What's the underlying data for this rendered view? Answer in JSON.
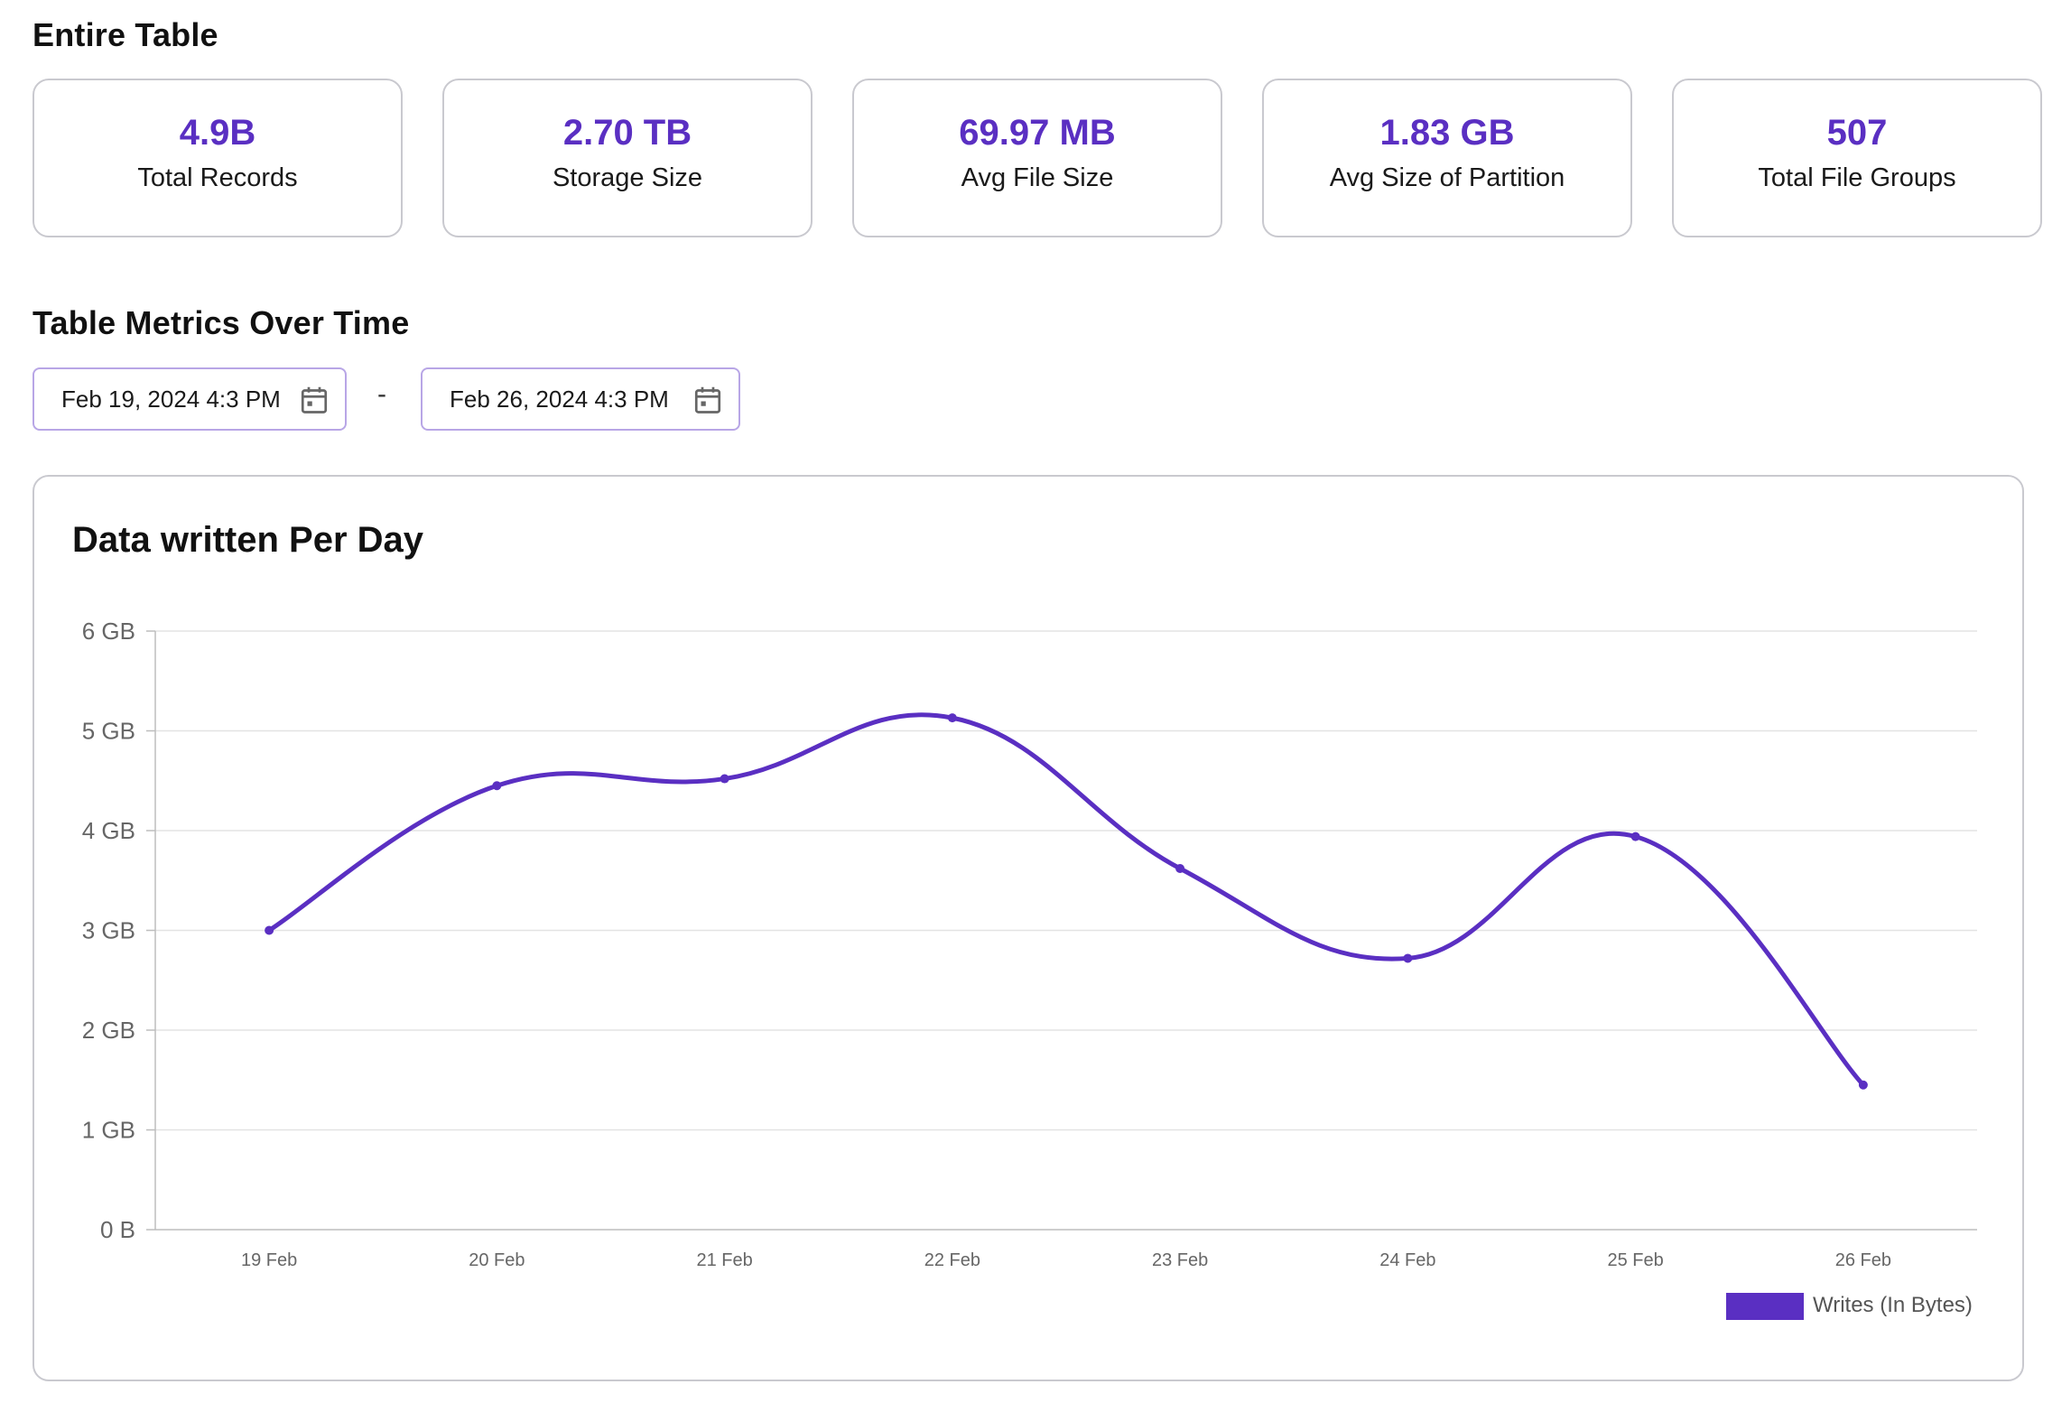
{
  "entire_table": {
    "title": "Entire Table",
    "stats": [
      {
        "value": "4.9B",
        "label": "Total Records"
      },
      {
        "value": "2.70 TB",
        "label": "Storage Size"
      },
      {
        "value": "69.97 MB",
        "label": "Avg File Size"
      },
      {
        "value": "1.83 GB",
        "label": "Avg Size of Partition"
      },
      {
        "value": "507",
        "label": "Total File Groups"
      }
    ]
  },
  "metrics": {
    "title": "Table Metrics Over Time",
    "start_date": "Feb 19, 2024 4:3 PM",
    "separator": "-",
    "end_date": "Feb 26, 2024 4:3 PM",
    "calendar_icon": "calendar-icon"
  },
  "colors": {
    "accent": "#5a2fc2",
    "date_border": "#b8a6e6",
    "card_border": "#c9c9cf"
  },
  "chart_data": {
    "type": "line",
    "title": "Data written Per Day",
    "categories": [
      "19 Feb",
      "20 Feb",
      "21 Feb",
      "22 Feb",
      "23 Feb",
      "24 Feb",
      "25 Feb",
      "26 Feb"
    ],
    "series": [
      {
        "name": "Writes (In Bytes)",
        "values": [
          3.0,
          4.45,
          4.52,
          5.13,
          3.62,
          2.72,
          3.94,
          1.45
        ]
      }
    ],
    "y_unit": "GB",
    "ylim": [
      0,
      6
    ],
    "yticks": [
      "0 B",
      "1 GB",
      "2 GB",
      "3 GB",
      "4 GB",
      "5 GB",
      "6 GB"
    ],
    "grid": true,
    "legend_position": "bottom-right"
  }
}
